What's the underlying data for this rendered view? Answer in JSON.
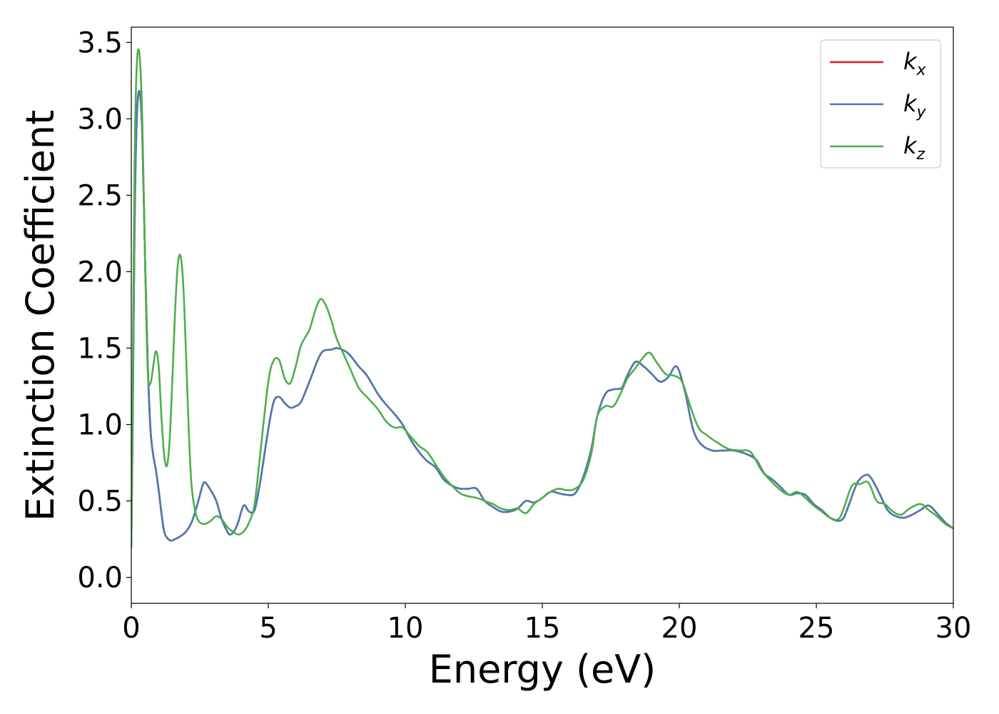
{
  "chart_data": {
    "type": "line",
    "title": "",
    "xlabel": "Energy (eV)",
    "ylabel": "Extinction Coefficient",
    "xlim": [
      0,
      30
    ],
    "ylim": [
      -0.17,
      3.6
    ],
    "xticks": [
      0,
      5,
      10,
      15,
      20,
      25,
      30
    ],
    "yticks": [
      0.0,
      0.5,
      1.0,
      1.5,
      2.0,
      2.5,
      3.0,
      3.5
    ],
    "grid": false,
    "legend_position": "top-right",
    "series": [
      {
        "name": "k",
        "subscript": "x",
        "color": "#e41a1c",
        "x": [
          0.0,
          0.05,
          0.12,
          0.2,
          0.3,
          0.4,
          0.5,
          0.6,
          0.7,
          0.8,
          0.9,
          1.0,
          1.1,
          1.2,
          1.3,
          1.45,
          1.6,
          1.8,
          2.0,
          2.2,
          2.4,
          2.6,
          2.7,
          2.9,
          3.1,
          3.3,
          3.5,
          3.6,
          3.75,
          3.9,
          4.1,
          4.3,
          4.5,
          4.7,
          5.0,
          5.2,
          5.4,
          5.6,
          5.8,
          6.0,
          6.2,
          6.5,
          6.8,
          7.0,
          7.3,
          7.5,
          7.8,
          8.0,
          8.3,
          8.6,
          9.0,
          9.3,
          9.6,
          9.9,
          10.2,
          10.5,
          10.8,
          11.1,
          11.4,
          11.7,
          12.0,
          12.3,
          12.6,
          12.9,
          13.2,
          13.5,
          13.8,
          14.1,
          14.4,
          14.7,
          15.0,
          15.3,
          15.6,
          15.9,
          16.2,
          16.5,
          16.8,
          17.0,
          17.3,
          17.6,
          17.9,
          18.1,
          18.4,
          18.7,
          19.0,
          19.3,
          19.6,
          19.9,
          20.2,
          20.5,
          20.8,
          21.2,
          21.6,
          22.0,
          22.4,
          22.8,
          23.1,
          23.4,
          23.7,
          24.0,
          24.3,
          24.6,
          24.9,
          25.2,
          25.5,
          25.8,
          26.0,
          26.2,
          26.5,
          26.8,
          27.0,
          27.3,
          27.6,
          27.9,
          28.2,
          28.5,
          28.8,
          29.1,
          29.4,
          29.7,
          30.0
        ],
        "y": [
          0.2,
          1.0,
          2.3,
          3.0,
          3.18,
          2.9,
          2.1,
          1.4,
          0.97,
          0.8,
          0.7,
          0.57,
          0.42,
          0.3,
          0.26,
          0.24,
          0.25,
          0.27,
          0.3,
          0.36,
          0.47,
          0.6,
          0.62,
          0.57,
          0.5,
          0.38,
          0.3,
          0.28,
          0.3,
          0.36,
          0.47,
          0.43,
          0.44,
          0.62,
          0.97,
          1.15,
          1.18,
          1.14,
          1.11,
          1.12,
          1.15,
          1.28,
          1.42,
          1.48,
          1.49,
          1.5,
          1.48,
          1.45,
          1.38,
          1.32,
          1.2,
          1.13,
          1.07,
          1.0,
          0.9,
          0.82,
          0.76,
          0.72,
          0.64,
          0.6,
          0.58,
          0.58,
          0.58,
          0.5,
          0.46,
          0.43,
          0.43,
          0.45,
          0.5,
          0.49,
          0.52,
          0.56,
          0.55,
          0.54,
          0.55,
          0.66,
          0.85,
          1.05,
          1.2,
          1.23,
          1.24,
          1.32,
          1.41,
          1.38,
          1.33,
          1.28,
          1.31,
          1.38,
          1.22,
          0.97,
          0.87,
          0.83,
          0.83,
          0.83,
          0.81,
          0.77,
          0.68,
          0.64,
          0.59,
          0.54,
          0.55,
          0.54,
          0.48,
          0.44,
          0.39,
          0.37,
          0.39,
          0.48,
          0.62,
          0.67,
          0.65,
          0.55,
          0.44,
          0.4,
          0.39,
          0.41,
          0.44,
          0.47,
          0.42,
          0.36,
          0.32
        ]
      },
      {
        "name": "k",
        "subscript": "y",
        "color": "#4a7ab4",
        "x": [
          0.0,
          0.05,
          0.12,
          0.2,
          0.3,
          0.4,
          0.5,
          0.6,
          0.7,
          0.8,
          0.9,
          1.0,
          1.1,
          1.2,
          1.3,
          1.45,
          1.6,
          1.8,
          2.0,
          2.2,
          2.4,
          2.6,
          2.7,
          2.9,
          3.1,
          3.3,
          3.5,
          3.6,
          3.75,
          3.9,
          4.1,
          4.3,
          4.5,
          4.7,
          5.0,
          5.2,
          5.4,
          5.6,
          5.8,
          6.0,
          6.2,
          6.5,
          6.8,
          7.0,
          7.3,
          7.5,
          7.8,
          8.0,
          8.3,
          8.6,
          9.0,
          9.3,
          9.6,
          9.9,
          10.2,
          10.5,
          10.8,
          11.1,
          11.4,
          11.7,
          12.0,
          12.3,
          12.6,
          12.9,
          13.2,
          13.5,
          13.8,
          14.1,
          14.4,
          14.7,
          15.0,
          15.3,
          15.6,
          15.9,
          16.2,
          16.5,
          16.8,
          17.0,
          17.3,
          17.6,
          17.9,
          18.1,
          18.4,
          18.7,
          19.0,
          19.3,
          19.6,
          19.9,
          20.2,
          20.5,
          20.8,
          21.2,
          21.6,
          22.0,
          22.4,
          22.8,
          23.1,
          23.4,
          23.7,
          24.0,
          24.3,
          24.6,
          24.9,
          25.2,
          25.5,
          25.8,
          26.0,
          26.2,
          26.5,
          26.8,
          27.0,
          27.3,
          27.6,
          27.9,
          28.2,
          28.5,
          28.8,
          29.1,
          29.4,
          29.7,
          30.0
        ],
        "y": [
          0.2,
          1.0,
          2.3,
          3.0,
          3.18,
          2.9,
          2.1,
          1.4,
          0.97,
          0.8,
          0.7,
          0.57,
          0.42,
          0.3,
          0.26,
          0.24,
          0.25,
          0.27,
          0.3,
          0.36,
          0.47,
          0.6,
          0.62,
          0.57,
          0.5,
          0.38,
          0.3,
          0.28,
          0.3,
          0.36,
          0.47,
          0.43,
          0.44,
          0.62,
          0.97,
          1.15,
          1.18,
          1.14,
          1.11,
          1.12,
          1.15,
          1.28,
          1.42,
          1.48,
          1.49,
          1.5,
          1.48,
          1.45,
          1.38,
          1.32,
          1.2,
          1.13,
          1.07,
          1.0,
          0.9,
          0.82,
          0.76,
          0.72,
          0.64,
          0.6,
          0.58,
          0.58,
          0.58,
          0.5,
          0.46,
          0.43,
          0.43,
          0.45,
          0.5,
          0.49,
          0.52,
          0.56,
          0.55,
          0.54,
          0.55,
          0.66,
          0.85,
          1.05,
          1.2,
          1.23,
          1.24,
          1.32,
          1.41,
          1.38,
          1.33,
          1.28,
          1.31,
          1.38,
          1.22,
          0.97,
          0.87,
          0.83,
          0.83,
          0.83,
          0.81,
          0.77,
          0.68,
          0.64,
          0.59,
          0.54,
          0.55,
          0.54,
          0.48,
          0.44,
          0.39,
          0.37,
          0.39,
          0.48,
          0.62,
          0.67,
          0.65,
          0.55,
          0.44,
          0.4,
          0.39,
          0.41,
          0.44,
          0.47,
          0.42,
          0.36,
          0.32
        ]
      },
      {
        "name": "k",
        "subscript": "z",
        "color": "#4daf4a",
        "x": [
          0.0,
          0.05,
          0.12,
          0.2,
          0.3,
          0.4,
          0.5,
          0.6,
          0.7,
          0.8,
          0.9,
          1.0,
          1.1,
          1.2,
          1.3,
          1.4,
          1.5,
          1.6,
          1.7,
          1.8,
          1.9,
          2.0,
          2.1,
          2.2,
          2.35,
          2.5,
          2.7,
          2.9,
          3.1,
          3.3,
          3.5,
          3.7,
          3.9,
          4.1,
          4.3,
          4.5,
          4.7,
          5.0,
          5.2,
          5.4,
          5.6,
          5.8,
          6.0,
          6.2,
          6.5,
          6.7,
          6.9,
          7.1,
          7.3,
          7.5,
          7.8,
          8.0,
          8.3,
          8.6,
          9.0,
          9.3,
          9.6,
          9.9,
          10.2,
          10.5,
          10.8,
          11.1,
          11.4,
          11.7,
          12.0,
          12.3,
          12.6,
          12.9,
          13.2,
          13.5,
          13.8,
          14.1,
          14.4,
          14.7,
          15.0,
          15.3,
          15.6,
          15.9,
          16.2,
          16.5,
          16.8,
          17.0,
          17.3,
          17.6,
          17.9,
          18.1,
          18.4,
          18.6,
          18.9,
          19.2,
          19.5,
          19.8,
          20.1,
          20.4,
          20.7,
          21.0,
          21.4,
          21.8,
          22.2,
          22.6,
          23.0,
          23.4,
          23.7,
          24.0,
          24.3,
          24.6,
          24.9,
          25.2,
          25.5,
          25.8,
          26.0,
          26.3,
          26.6,
          26.9,
          27.2,
          27.5,
          27.8,
          28.1,
          28.4,
          28.8,
          29.1,
          29.4,
          29.7,
          30.0
        ],
        "y": [
          0.2,
          1.2,
          2.7,
          3.35,
          3.42,
          3.0,
          2.1,
          1.35,
          1.27,
          1.38,
          1.48,
          1.38,
          1.05,
          0.8,
          0.73,
          0.9,
          1.3,
          1.75,
          2.05,
          2.1,
          1.9,
          1.45,
          0.95,
          0.6,
          0.42,
          0.36,
          0.35,
          0.37,
          0.4,
          0.38,
          0.33,
          0.3,
          0.28,
          0.3,
          0.36,
          0.48,
          0.8,
          1.28,
          1.42,
          1.42,
          1.3,
          1.27,
          1.38,
          1.52,
          1.62,
          1.74,
          1.82,
          1.78,
          1.68,
          1.56,
          1.44,
          1.36,
          1.24,
          1.18,
          1.1,
          1.02,
          0.98,
          0.98,
          0.92,
          0.86,
          0.82,
          0.74,
          0.66,
          0.6,
          0.55,
          0.53,
          0.52,
          0.5,
          0.48,
          0.45,
          0.44,
          0.45,
          0.42,
          0.48,
          0.52,
          0.56,
          0.58,
          0.57,
          0.58,
          0.64,
          0.82,
          1.05,
          1.12,
          1.12,
          1.22,
          1.3,
          1.37,
          1.42,
          1.47,
          1.4,
          1.33,
          1.32,
          1.28,
          1.12,
          0.98,
          0.93,
          0.88,
          0.84,
          0.83,
          0.82,
          0.7,
          0.62,
          0.57,
          0.54,
          0.56,
          0.52,
          0.47,
          0.43,
          0.39,
          0.38,
          0.45,
          0.6,
          0.61,
          0.62,
          0.5,
          0.48,
          0.43,
          0.41,
          0.45,
          0.48,
          0.44,
          0.4,
          0.35,
          0.32
        ]
      }
    ]
  }
}
